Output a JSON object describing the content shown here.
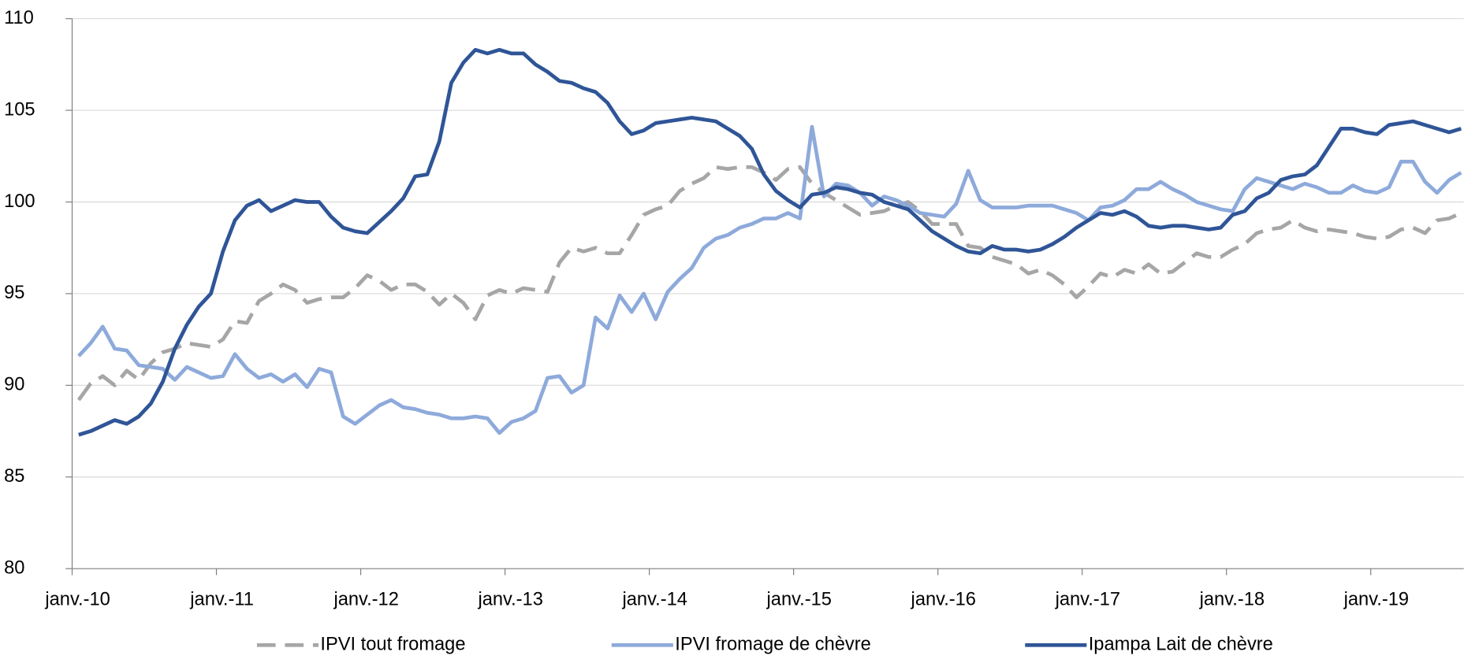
{
  "chart_data": {
    "type": "line",
    "categories": [
      "janv.-10",
      null,
      null,
      null,
      null,
      null,
      null,
      null,
      null,
      null,
      null,
      null,
      "janv.-11",
      null,
      null,
      null,
      null,
      null,
      null,
      null,
      null,
      null,
      null,
      null,
      "janv.-12",
      null,
      null,
      null,
      null,
      null,
      null,
      null,
      null,
      null,
      null,
      null,
      "janv.-13",
      null,
      null,
      null,
      null,
      null,
      null,
      null,
      null,
      null,
      null,
      null,
      "janv.-14",
      null,
      null,
      null,
      null,
      null,
      null,
      null,
      null,
      null,
      null,
      null,
      "janv.-15",
      null,
      null,
      null,
      null,
      null,
      null,
      null,
      null,
      null,
      null,
      null,
      "janv.-16",
      null,
      null,
      null,
      null,
      null,
      null,
      null,
      null,
      null,
      null,
      null,
      "janv.-17",
      null,
      null,
      null,
      null,
      null,
      null,
      null,
      null,
      null,
      null,
      null,
      "janv.-18",
      null,
      null,
      null,
      null,
      null,
      null,
      null,
      null,
      null,
      null,
      null,
      "janv.-19",
      null,
      null,
      null,
      null,
      null,
      null,
      null
    ],
    "series": [
      {
        "name": "IPVI tout fromage",
        "color": "#a6a6a6",
        "dashed": true,
        "values": [
          89.2,
          90.1,
          90.5,
          90.0,
          90.8,
          90.3,
          91.2,
          91.8,
          92.0,
          92.3,
          92.2,
          92.1,
          92.5,
          93.5,
          93.4,
          94.6,
          95.0,
          95.5,
          95.2,
          94.5,
          94.7,
          94.8,
          94.8,
          95.3,
          96.0,
          95.7,
          95.2,
          95.5,
          95.5,
          95.1,
          94.4,
          95.0,
          94.5,
          93.6,
          94.9,
          95.2,
          95.0,
          95.3,
          95.2,
          95.1,
          96.7,
          97.5,
          97.3,
          97.5,
          97.2,
          97.2,
          98.2,
          99.3,
          99.6,
          99.8,
          100.6,
          101.0,
          101.3,
          101.9,
          101.8,
          101.9,
          101.9,
          101.6,
          101.2,
          101.8,
          101.9,
          101.0,
          100.5,
          100.1,
          99.7,
          99.3,
          99.4,
          99.5,
          99.8,
          100.0,
          99.5,
          98.8,
          98.8,
          98.8,
          97.6,
          97.5,
          97.0,
          96.8,
          96.6,
          96.1,
          96.3,
          96.0,
          95.5,
          94.8,
          95.4,
          96.1,
          95.9,
          96.3,
          96.1,
          96.6,
          96.1,
          96.2,
          96.7,
          97.2,
          97.0,
          97.0,
          97.4,
          97.7,
          98.3,
          98.5,
          98.6,
          99.0,
          98.6,
          98.4,
          98.5,
          98.4,
          98.3,
          98.1,
          98.0,
          98.1,
          98.5,
          98.6,
          98.3,
          99.0,
          99.1,
          99.4
        ]
      },
      {
        "name": "IPVI fromage de chèvre",
        "color": "#8eaadb",
        "dashed": false,
        "values": [
          91.6,
          92.3,
          93.2,
          92.0,
          91.9,
          91.1,
          91.0,
          90.9,
          90.3,
          91.0,
          90.7,
          90.4,
          90.5,
          91.7,
          90.9,
          90.4,
          90.6,
          90.2,
          90.6,
          89.9,
          90.9,
          90.7,
          88.3,
          87.9,
          88.4,
          88.9,
          89.2,
          88.8,
          88.7,
          88.5,
          88.4,
          88.2,
          88.2,
          88.3,
          88.2,
          87.4,
          88.0,
          88.2,
          88.6,
          90.4,
          90.5,
          89.6,
          90.0,
          93.7,
          93.1,
          94.9,
          94.0,
          95.0,
          93.6,
          95.1,
          95.8,
          96.4,
          97.5,
          98.0,
          98.2,
          98.6,
          98.8,
          99.1,
          99.1,
          99.4,
          99.1,
          104.1,
          100.3,
          101.0,
          100.9,
          100.5,
          99.8,
          100.3,
          100.1,
          99.8,
          99.4,
          99.3,
          99.2,
          99.9,
          101.7,
          100.1,
          99.7,
          99.7,
          99.7,
          99.8,
          99.8,
          99.8,
          99.6,
          99.4,
          99.0,
          99.7,
          99.8,
          100.1,
          100.7,
          100.7,
          101.1,
          100.7,
          100.4,
          100.0,
          99.8,
          99.6,
          99.5,
          100.7,
          101.3,
          101.1,
          100.9,
          100.7,
          101.0,
          100.8,
          100.5,
          100.5,
          100.9,
          100.6,
          100.5,
          100.8,
          102.2,
          102.2,
          101.1,
          100.5,
          101.2,
          101.6
        ]
      },
      {
        "name": "Ipampa Lait de chèvre",
        "color": "#2f5597",
        "dashed": false,
        "values": [
          87.3,
          87.5,
          87.8,
          88.1,
          87.9,
          88.3,
          89.0,
          90.2,
          92.0,
          93.3,
          94.3,
          95.0,
          97.3,
          99.0,
          99.8,
          100.1,
          99.5,
          99.8,
          100.1,
          100.0,
          100.0,
          99.2,
          98.6,
          98.4,
          98.3,
          98.9,
          99.5,
          100.2,
          101.4,
          101.5,
          103.3,
          106.5,
          107.6,
          108.3,
          108.1,
          108.3,
          108.1,
          108.1,
          107.5,
          107.1,
          106.6,
          106.5,
          106.2,
          106.0,
          105.4,
          104.4,
          103.7,
          103.9,
          104.3,
          104.4,
          104.5,
          104.6,
          104.5,
          104.4,
          104.0,
          103.6,
          102.9,
          101.5,
          100.6,
          100.1,
          99.7,
          100.4,
          100.5,
          100.8,
          100.7,
          100.5,
          100.4,
          100.0,
          99.8,
          99.6,
          99.0,
          98.4,
          98.0,
          97.6,
          97.3,
          97.2,
          97.6,
          97.4,
          97.4,
          97.3,
          97.4,
          97.7,
          98.1,
          98.6,
          99.0,
          99.4,
          99.3,
          99.5,
          99.2,
          98.7,
          98.6,
          98.7,
          98.7,
          98.6,
          98.5,
          98.6,
          99.3,
          99.5,
          100.2,
          100.5,
          101.2,
          101.4,
          101.5,
          102.0,
          103.0,
          104.0,
          104.0,
          103.8,
          103.7,
          104.2,
          104.3,
          104.4,
          104.2,
          104.0,
          103.8,
          104.0
        ]
      }
    ],
    "ylim": [
      80,
      110
    ],
    "yticks": [
      80,
      85,
      90,
      95,
      100,
      105,
      110
    ],
    "grid": true,
    "legend": "bottom"
  }
}
